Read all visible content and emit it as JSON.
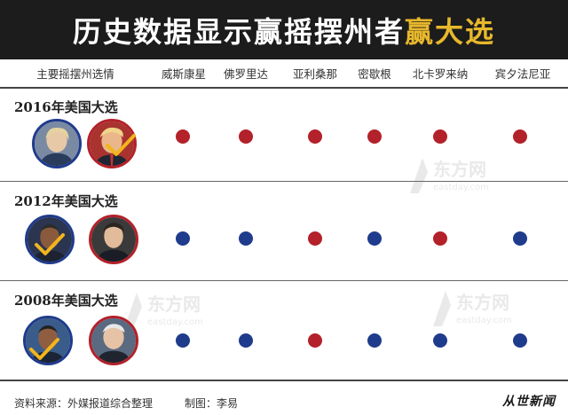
{
  "header": {
    "title_main": "历史数据显示赢摇摆州者",
    "title_accent": "赢大选"
  },
  "table": {
    "first_col_header": "主要摇摆州选情",
    "states": [
      "威斯康星",
      "佛罗里达",
      "亚利桑那",
      "密歇根",
      "北卡罗来纳",
      "宾夕法尼亚"
    ]
  },
  "chart_data": {
    "type": "table",
    "columns": [
      "主要摇摆州选情",
      "威斯康星",
      "佛罗里达",
      "亚利桑那",
      "密歇根",
      "北卡罗来纳",
      "宾夕法尼亚"
    ],
    "rows": [
      {
        "election": "2016年美国大选",
        "winner": "rep",
        "results": [
          "rep",
          "rep",
          "rep",
          "rep",
          "rep",
          "rep"
        ]
      },
      {
        "election": "2012年美国大选",
        "winner": "dem",
        "results": [
          "dem",
          "dem",
          "rep",
          "dem",
          "rep",
          "dem"
        ]
      },
      {
        "election": "2008年美国大选",
        "winner": "dem",
        "results": [
          "dem",
          "dem",
          "rep",
          "dem",
          "dem",
          "dem"
        ]
      }
    ],
    "colors": {
      "dem": "#1f3b8c",
      "rep": "#b3212a"
    }
  },
  "colors": {
    "header_bg": "#1c1c1c",
    "title_white": "#ffffff",
    "title_gold": "#e8b82c",
    "dem": "#1f3b8c",
    "rep": "#b3212a",
    "check": "#f2b51c"
  },
  "watermark": {
    "cn": "东方网",
    "en": "eastday.com"
  },
  "footer": {
    "source": "资料来源：外媒报道综合整理",
    "credit": "制图：李易",
    "brand": "从世新闻"
  }
}
